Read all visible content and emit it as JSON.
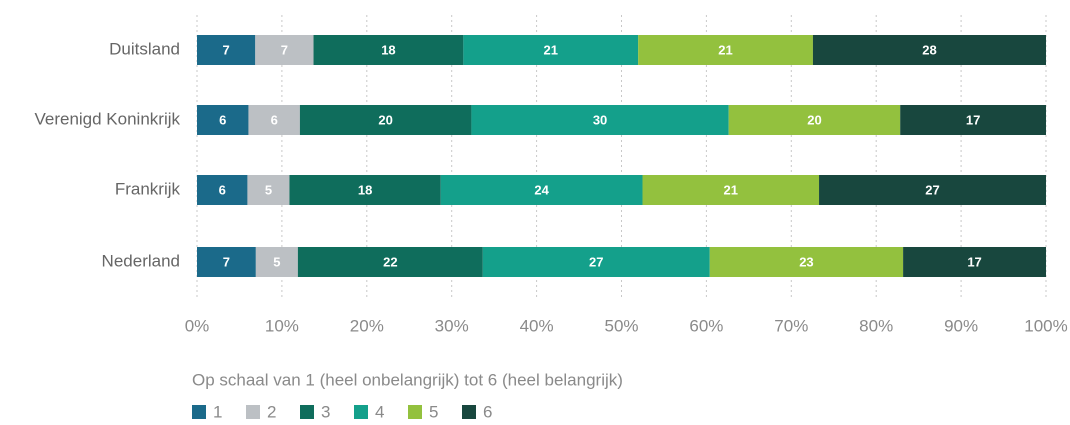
{
  "chart_data": {
    "type": "bar",
    "orientation": "horizontal",
    "stacking": "percent",
    "categories": [
      "Duitsland",
      "Verenigd Koninkrijk",
      "Frankrijk",
      "Nederland"
    ],
    "series": [
      {
        "name": "1",
        "color": "#1b6a8a",
        "values": [
          7,
          6,
          6,
          7
        ]
      },
      {
        "name": "2",
        "color": "#bcc0c4",
        "values": [
          7,
          6,
          5,
          5
        ]
      },
      {
        "name": "3",
        "color": "#0f6d5c",
        "values": [
          18,
          20,
          18,
          22
        ]
      },
      {
        "name": "4",
        "color": "#14a08b",
        "values": [
          21,
          30,
          24,
          27
        ]
      },
      {
        "name": "5",
        "color": "#93c13e",
        "values": [
          21,
          20,
          21,
          23
        ]
      },
      {
        "name": "6",
        "color": "#18473e",
        "values": [
          28,
          17,
          27,
          17
        ]
      }
    ],
    "xlabel": "Op schaal van 1 (heel onbelangrijk) tot 6 (heel belangrijk)",
    "xlim": [
      0,
      100
    ],
    "xticks": [
      {
        "value": 0,
        "label": "0%"
      },
      {
        "value": 10,
        "label": "10%"
      },
      {
        "value": 20,
        "label": "20%"
      },
      {
        "value": 30,
        "label": "30%"
      },
      {
        "value": 40,
        "label": "40%"
      },
      {
        "value": 50,
        "label": "50%"
      },
      {
        "value": 60,
        "label": "60%"
      },
      {
        "value": 70,
        "label": "70%"
      },
      {
        "value": 80,
        "label": "80%"
      },
      {
        "value": 90,
        "label": "90%"
      },
      {
        "value": 100,
        "label": "100%"
      }
    ],
    "grid": true,
    "legend": "bottom-left"
  }
}
